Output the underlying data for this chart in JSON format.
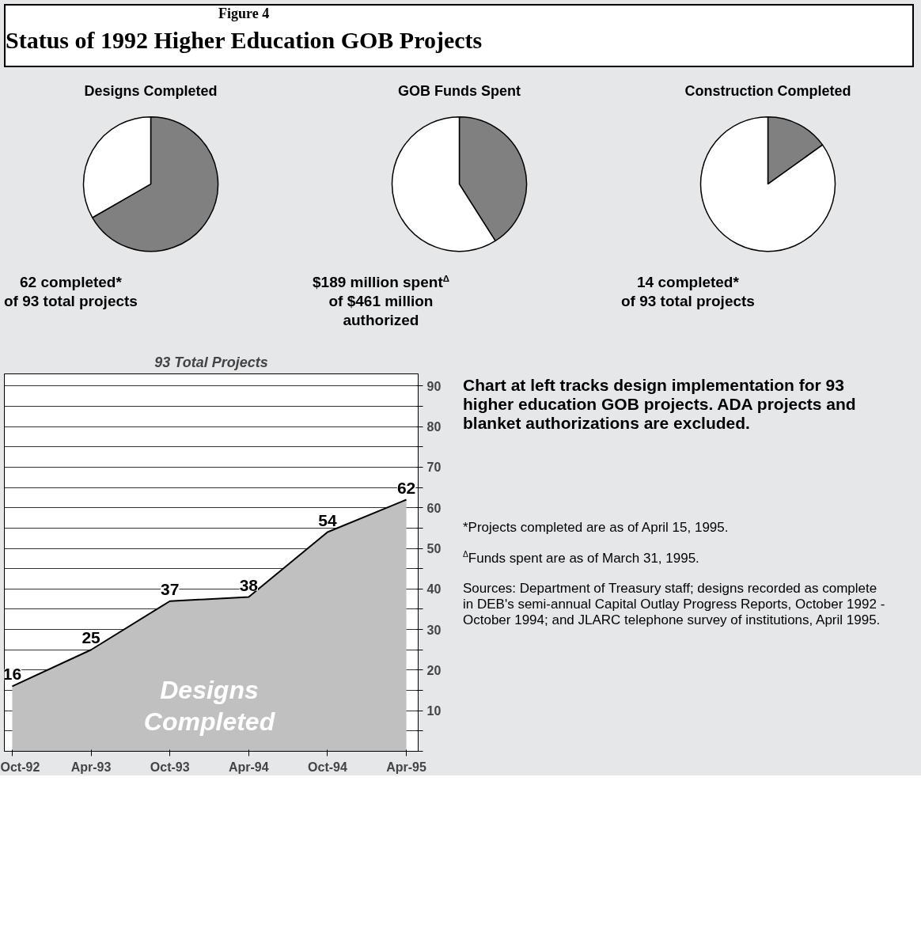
{
  "chart_data": [
    {
      "type": "other",
      "subtitle": "Figure 4",
      "title": "Status of 1992 Higher Education GOB Projects"
    },
    {
      "type": "pie",
      "title": "Designs Completed",
      "categories": [
        null,
        null
      ],
      "values": [
        66.7,
        33.3
      ],
      "colors": [
        "#808080",
        "#ffffff"
      ],
      "annotations": [
        "62 completed*\nof 93 total projects"
      ]
    },
    {
      "type": "pie",
      "title": "GOB Funds Spent",
      "categories": [
        null,
        null
      ],
      "values": [
        41.0,
        59.0
      ],
      "colors": [
        "#808080",
        "#ffffff"
      ],
      "annotations": [
        "$189  million spent$^{Δ}$\nof $461 million\nauthorized"
      ]
    },
    {
      "type": "pie",
      "title": "Construction Completed",
      "categories": [
        null,
        null
      ],
      "values": [
        15.1,
        84.9
      ],
      "colors": [
        "#808080",
        "#ffffff"
      ],
      "annotations": [
        "14 completed*\nof 93 total projects"
      ]
    },
    {
      "type": "area",
      "title": "93 Total Projects",
      "categories": [
        "Oct-92",
        "Apr-93",
        "Oct-93",
        "Apr-94",
        "Oct-94",
        "Apr-95"
      ],
      "values": [
        16,
        25,
        37,
        38,
        54,
        62
      ],
      "color": "#c0c0c0",
      "data_labels": true,
      "grid": "y",
      "ylim": [
        0,
        93
      ],
      "yticks": [
        {
          "value": 0,
          "label": null
        },
        {
          "value": 5,
          "label": null
        },
        10,
        {
          "value": 15,
          "label": null
        },
        20,
        {
          "value": 25,
          "label": null
        },
        30,
        {
          "value": 35,
          "label": null
        },
        40,
        {
          "value": 45,
          "label": null
        },
        50,
        {
          "value": 55,
          "label": null
        },
        60,
        {
          "value": 65,
          "label": null
        },
        70,
        {
          "value": 75,
          "label": null
        },
        80,
        {
          "value": 85,
          "label": null
        },
        90
      ],
      "annotations": [
        "Designs\nCompleted",
        "Chart at left tracks design implementation for 93 higher education GOB projects. ADA projects and blanket authorizations are excluded.",
        "*Projects completed are as of April 15, 1995.",
        "$^{Δ}$Funds spent are as of March 31, 1995.",
        "Sources:  Department of Treasury staff; designs recorded as complete in DEB's semi-annual Capital Outlay Progress Reports, October 1992 - October 1994; and JLARC telephone survey of institutions, April 1995."
      ]
    }
  ]
}
